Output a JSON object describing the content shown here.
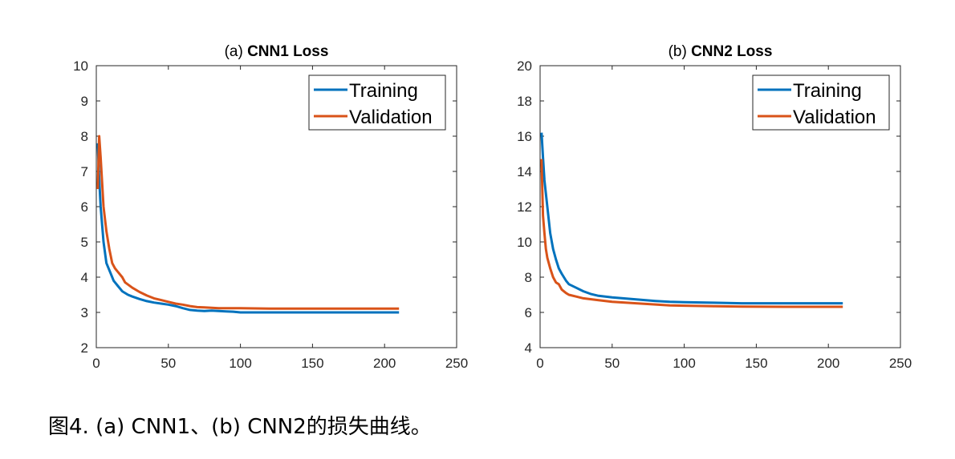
{
  "caption": "图4. (a) CNN1、(b) CNN2的损失曲线。",
  "colors": {
    "training": "#0072BD",
    "validation": "#D95319"
  },
  "chart_data": [
    {
      "type": "line",
      "title_prefix": "(a)",
      "title": "CNN1 Loss",
      "xlabel": "",
      "ylabel": "",
      "xlim": [
        0,
        250
      ],
      "ylim": [
        2,
        10
      ],
      "xticks": [
        0,
        50,
        100,
        150,
        200,
        250
      ],
      "yticks": [
        2,
        3,
        4,
        5,
        6,
        7,
        8,
        9,
        10
      ],
      "grid": false,
      "legend_position": "top-right",
      "series": [
        {
          "name": "Training",
          "points": [
            [
              1,
              7.8
            ],
            [
              2,
              6.8
            ],
            [
              3,
              6.0
            ],
            [
              5,
              5.0
            ],
            [
              7,
              4.4
            ],
            [
              10,
              4.1
            ],
            [
              12,
              3.9
            ],
            [
              15,
              3.75
            ],
            [
              18,
              3.6
            ],
            [
              22,
              3.5
            ],
            [
              25,
              3.45
            ],
            [
              30,
              3.38
            ],
            [
              35,
              3.32
            ],
            [
              40,
              3.28
            ],
            [
              45,
              3.25
            ],
            [
              50,
              3.22
            ],
            [
              55,
              3.18
            ],
            [
              60,
              3.12
            ],
            [
              65,
              3.07
            ],
            [
              70,
              3.05
            ],
            [
              75,
              3.04
            ],
            [
              80,
              3.05
            ],
            [
              85,
              3.04
            ],
            [
              90,
              3.03
            ],
            [
              95,
              3.02
            ],
            [
              100,
              3.0
            ],
            [
              110,
              3.0
            ],
            [
              120,
              3.0
            ],
            [
              140,
              3.0
            ],
            [
              160,
              3.0
            ],
            [
              180,
              3.0
            ],
            [
              210,
              3.0
            ]
          ]
        },
        {
          "name": "Validation",
          "points": [
            [
              1,
              6.5
            ],
            [
              2,
              8.0
            ],
            [
              3,
              7.4
            ],
            [
              4,
              6.7
            ],
            [
              5,
              6.0
            ],
            [
              7,
              5.3
            ],
            [
              9,
              4.8
            ],
            [
              11,
              4.4
            ],
            [
              13,
              4.25
            ],
            [
              15,
              4.15
            ],
            [
              18,
              4.0
            ],
            [
              20,
              3.85
            ],
            [
              25,
              3.7
            ],
            [
              30,
              3.58
            ],
            [
              35,
              3.48
            ],
            [
              40,
              3.4
            ],
            [
              45,
              3.35
            ],
            [
              50,
              3.3
            ],
            [
              55,
              3.25
            ],
            [
              60,
              3.22
            ],
            [
              65,
              3.18
            ],
            [
              70,
              3.15
            ],
            [
              75,
              3.14
            ],
            [
              80,
              3.13
            ],
            [
              85,
              3.12
            ],
            [
              90,
              3.12
            ],
            [
              95,
              3.12
            ],
            [
              100,
              3.12
            ],
            [
              120,
              3.11
            ],
            [
              150,
              3.11
            ],
            [
              180,
              3.11
            ],
            [
              210,
              3.11
            ]
          ]
        }
      ]
    },
    {
      "type": "line",
      "title_prefix": "(b)",
      "title": "CNN2 Loss",
      "xlabel": "",
      "ylabel": "",
      "xlim": [
        0,
        250
      ],
      "ylim": [
        4,
        20
      ],
      "xticks": [
        0,
        50,
        100,
        150,
        200,
        250
      ],
      "yticks": [
        4,
        6,
        8,
        10,
        12,
        14,
        16,
        18,
        20
      ],
      "grid": false,
      "legend_position": "top-right",
      "series": [
        {
          "name": "Training",
          "points": [
            [
              1,
              16.2
            ],
            [
              2,
              14.8
            ],
            [
              3,
              13.5
            ],
            [
              5,
              12.0
            ],
            [
              7,
              10.5
            ],
            [
              9,
              9.6
            ],
            [
              11,
              9.0
            ],
            [
              13,
              8.5
            ],
            [
              15,
              8.2
            ],
            [
              18,
              7.8
            ],
            [
              20,
              7.6
            ],
            [
              25,
              7.4
            ],
            [
              30,
              7.2
            ],
            [
              35,
              7.05
            ],
            [
              40,
              6.95
            ],
            [
              50,
              6.85
            ],
            [
              60,
              6.78
            ],
            [
              70,
              6.72
            ],
            [
              80,
              6.65
            ],
            [
              90,
              6.6
            ],
            [
              100,
              6.58
            ],
            [
              120,
              6.55
            ],
            [
              140,
              6.52
            ],
            [
              160,
              6.52
            ],
            [
              180,
              6.52
            ],
            [
              210,
              6.52
            ]
          ]
        },
        {
          "name": "Validation",
          "points": [
            [
              1,
              14.7
            ],
            [
              2,
              11.5
            ],
            [
              3,
              10.5
            ],
            [
              4,
              9.6
            ],
            [
              5,
              9.1
            ],
            [
              7,
              8.5
            ],
            [
              9,
              8.0
            ],
            [
              11,
              7.7
            ],
            [
              13,
              7.6
            ],
            [
              15,
              7.3
            ],
            [
              18,
              7.1
            ],
            [
              20,
              7.0
            ],
            [
              25,
              6.9
            ],
            [
              30,
              6.8
            ],
            [
              40,
              6.7
            ],
            [
              50,
              6.6
            ],
            [
              60,
              6.55
            ],
            [
              70,
              6.5
            ],
            [
              80,
              6.45
            ],
            [
              90,
              6.4
            ],
            [
              100,
              6.38
            ],
            [
              120,
              6.35
            ],
            [
              140,
              6.33
            ],
            [
              170,
              6.32
            ],
            [
              210,
              6.32
            ]
          ]
        }
      ]
    }
  ]
}
